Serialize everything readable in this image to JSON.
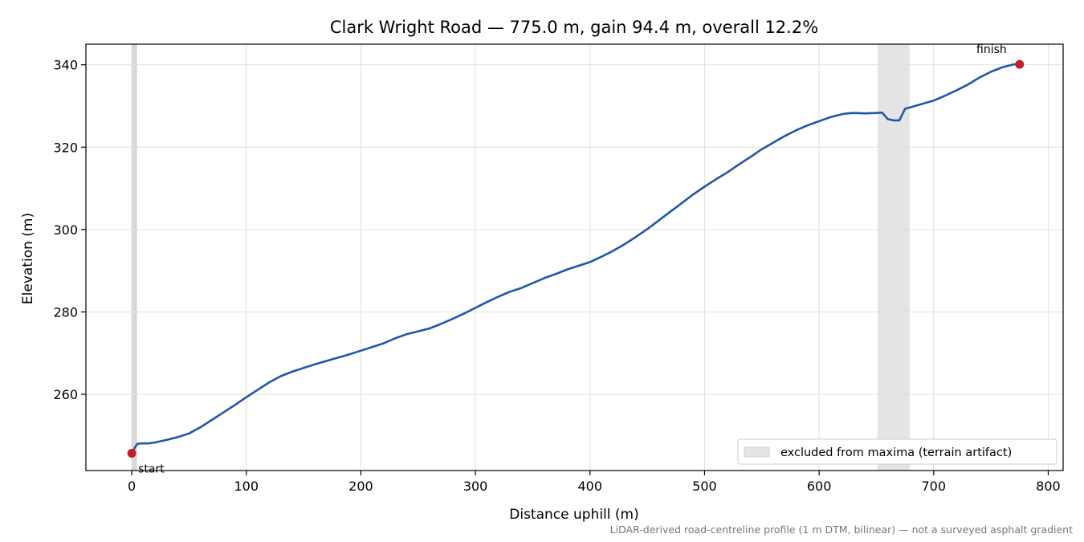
{
  "chart_data": {
    "type": "line",
    "title": "Clark Wright Road — 775.0 m, gain 94.4 m, overall 12.2%",
    "xlabel": "Distance uphill (m)",
    "ylabel": "Elevation (m)",
    "xlim": [
      -40,
      813
    ],
    "ylim": [
      241.5,
      345
    ],
    "xticks": [
      0,
      100,
      200,
      300,
      400,
      500,
      600,
      700,
      800
    ],
    "yticks": [
      260,
      280,
      300,
      320,
      340
    ],
    "xtick_labels": [
      "0",
      "100",
      "200",
      "300",
      "400",
      "500",
      "600",
      "700",
      "800"
    ],
    "ytick_labels": [
      "260",
      "280",
      "300",
      "320",
      "340"
    ],
    "grid": true,
    "series": [
      {
        "color": "#1f57a8",
        "x": [
          0,
          3,
          5,
          10,
          15,
          20,
          30,
          40,
          50,
          60,
          70,
          80,
          90,
          100,
          110,
          120,
          130,
          140,
          150,
          160,
          170,
          180,
          190,
          200,
          210,
          220,
          230,
          240,
          250,
          260,
          270,
          280,
          290,
          300,
          310,
          320,
          330,
          340,
          350,
          360,
          370,
          380,
          390,
          400,
          410,
          420,
          430,
          440,
          450,
          460,
          470,
          480,
          490,
          500,
          510,
          520,
          530,
          540,
          550,
          560,
          570,
          580,
          590,
          600,
          610,
          620,
          625,
          630,
          640,
          650,
          655,
          660,
          665,
          670,
          675,
          680,
          690,
          700,
          710,
          720,
          730,
          740,
          750,
          760,
          770,
          775
        ],
        "y": [
          245.7,
          247.2,
          248.0,
          248.1,
          248.1,
          248.3,
          248.9,
          249.6,
          250.5,
          252.0,
          253.8,
          255.6,
          257.4,
          259.3,
          261.1,
          262.9,
          264.4,
          265.5,
          266.4,
          267.3,
          268.1,
          268.9,
          269.7,
          270.6,
          271.5,
          272.4,
          273.6,
          274.6,
          275.3,
          276.0,
          277.1,
          278.3,
          279.6,
          281.0,
          282.4,
          283.7,
          284.9,
          285.8,
          287.0,
          288.2,
          289.2,
          290.3,
          291.2,
          292.1,
          293.4,
          294.8,
          296.4,
          298.2,
          300.1,
          302.2,
          304.3,
          306.4,
          308.5,
          310.4,
          312.2,
          313.9,
          315.8,
          317.6,
          319.5,
          321.1,
          322.7,
          324.1,
          325.3,
          326.3,
          327.3,
          328.0,
          328.2,
          328.3,
          328.2,
          328.3,
          328.4,
          326.8,
          326.5,
          326.5,
          329.3,
          329.7,
          330.5,
          331.3,
          332.5,
          333.8,
          335.2,
          336.9,
          338.3,
          339.4,
          340.1,
          340.1
        ]
      }
    ],
    "shaded_regions": [
      {
        "x0": 0,
        "x1": 4,
        "label": ""
      },
      {
        "x0": 651,
        "x1": 679,
        "label": "excluded from maxima (terrain artifact)"
      }
    ],
    "markers": [
      {
        "x": 0,
        "y": 245.7,
        "label": "start",
        "color": "#c0202a"
      },
      {
        "x": 775,
        "y": 340.1,
        "label": "finish",
        "color": "#c0202a"
      }
    ],
    "legend": {
      "position": "lower-right",
      "entries": [
        "excluded from maxima (terrain artifact)"
      ]
    },
    "footnote": "LiDAR-derived road-centreline profile (1 m DTM, bilinear) — not a surveyed asphalt gradient"
  },
  "colors": {
    "line": "#1f57a8",
    "marker": "#c0202a",
    "shade": "#e4e4e2",
    "grid": "#e0e0e0"
  }
}
